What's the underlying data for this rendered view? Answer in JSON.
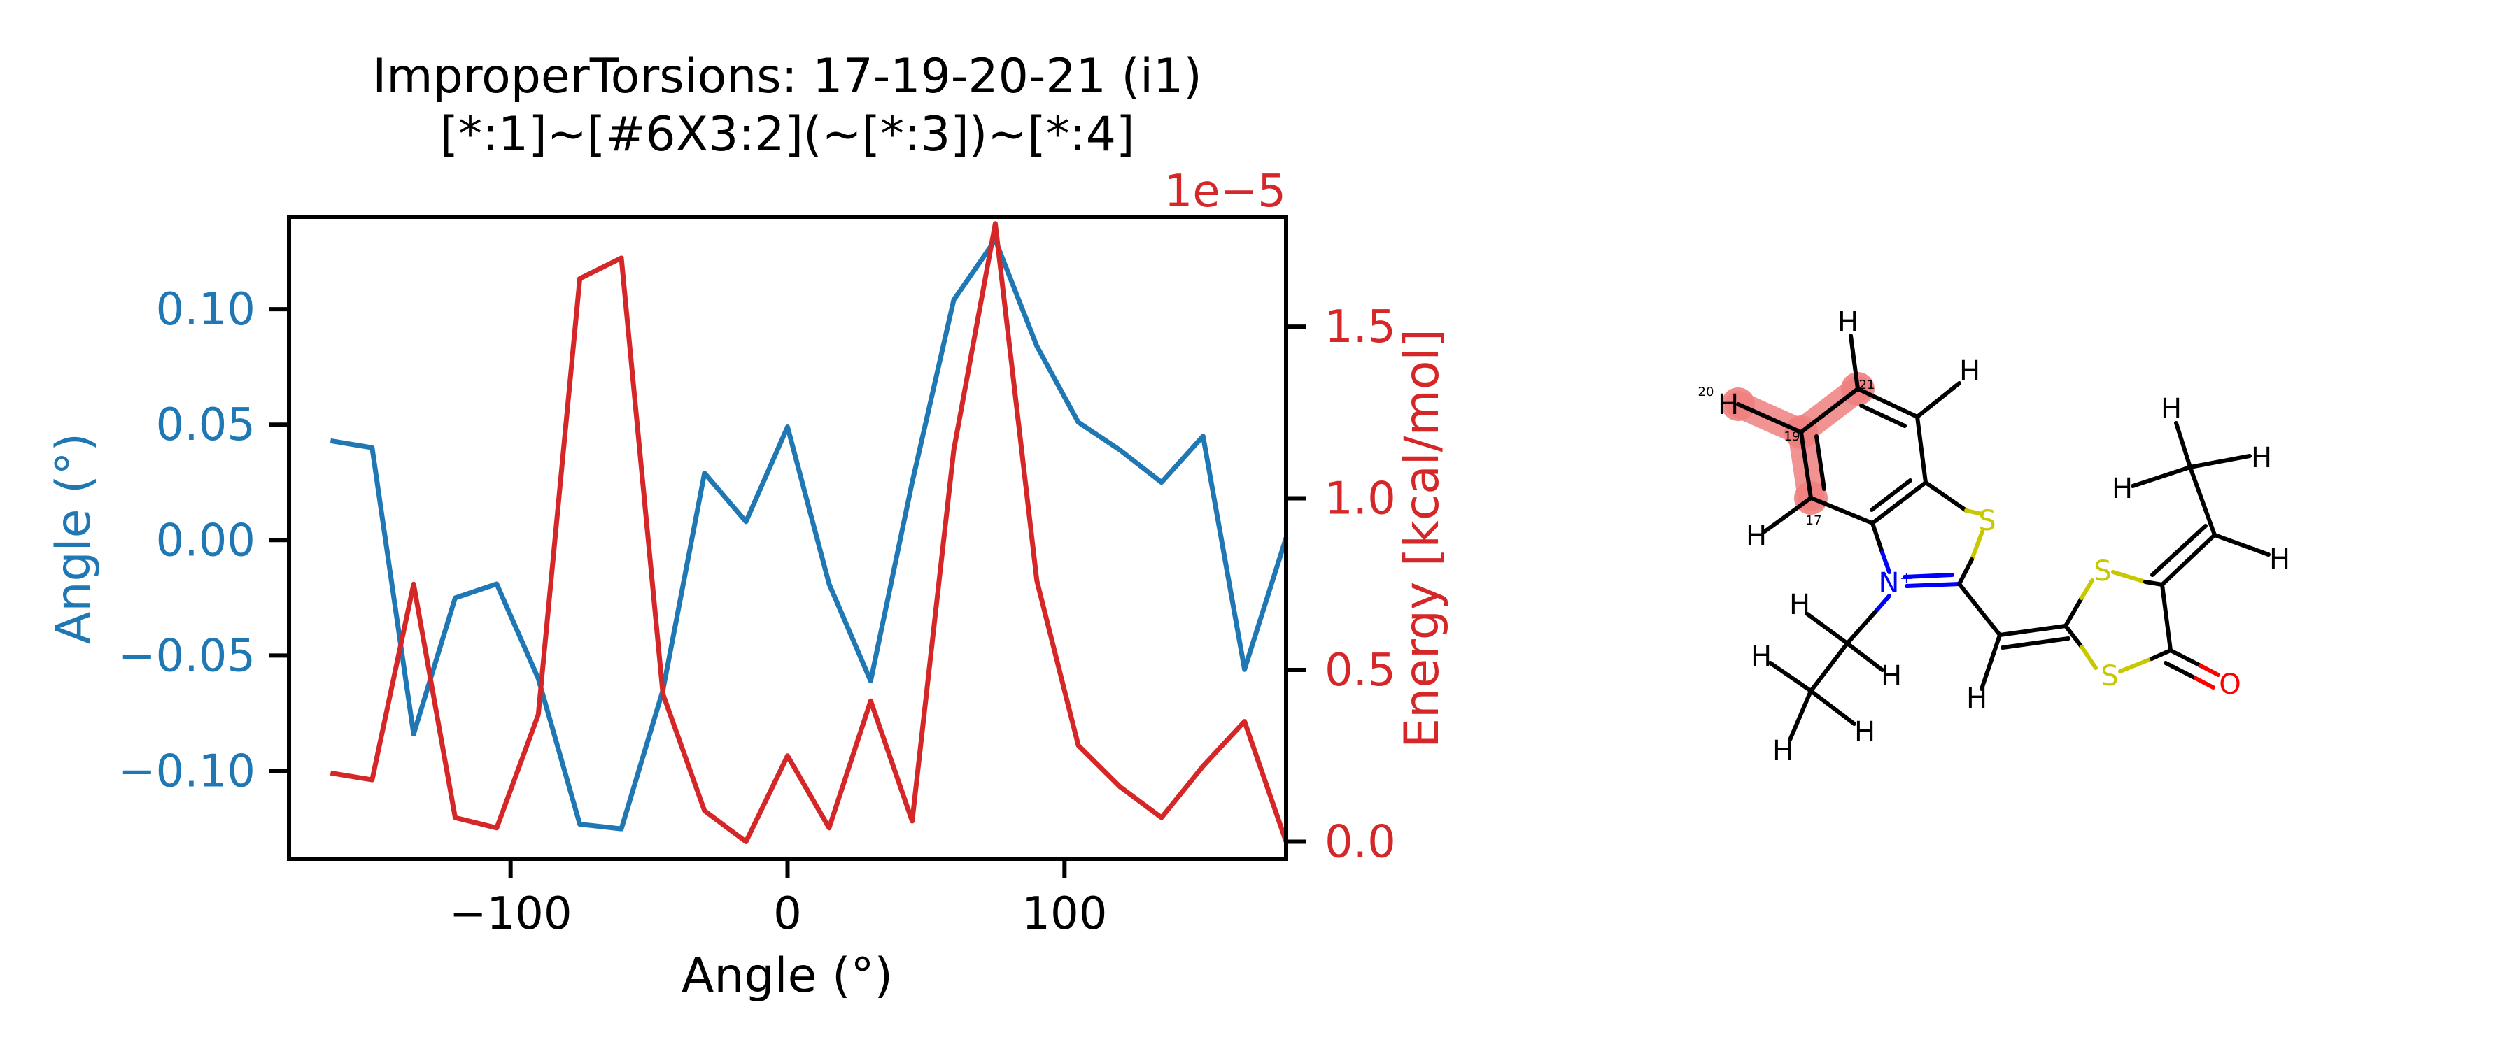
{
  "chart_data": {
    "type": "line",
    "title": "ImproperTorsions: 17-19-20-21 (i1)",
    "subtitle": "[*:1]~[#6X3:2](~[*:3])~[*:4]",
    "xlabel": "Angle (°)",
    "ylabel_left": "Angle (°)",
    "ylabel_right": "Energy [kcal/mol]",
    "right_offset_label": "1e−5",
    "xlim": [
      -180,
      180
    ],
    "ylim_left": [
      -0.138,
      0.14
    ],
    "ylim_right": [
      -0.05,
      1.82
    ],
    "x_ticks": [
      -100,
      0,
      100
    ],
    "x_tick_labels": [
      "−100",
      "0",
      "100"
    ],
    "y_left_ticks": [
      0.1,
      0.05,
      0.0,
      -0.05,
      -0.1
    ],
    "y_left_tick_labels": [
      "0.10",
      "0.05",
      "0.00",
      "−0.05",
      "−0.10"
    ],
    "y_right_ticks": [
      1.5,
      1.0,
      0.5,
      0.0
    ],
    "y_right_tick_labels": [
      "1.5",
      "1.0",
      "0.5",
      "0.0"
    ],
    "grid": false,
    "x": [
      -165,
      -150,
      -135,
      -120,
      -105,
      -90,
      -75,
      -60,
      -45,
      -30,
      -15,
      0,
      15,
      30,
      45,
      60,
      75,
      90,
      105,
      120,
      135,
      150,
      165,
      180
    ],
    "series": [
      {
        "axis": "left",
        "color": "#1f77b4",
        "values": [
          0.043,
          0.04,
          -0.084,
          -0.025,
          -0.019,
          -0.06,
          -0.123,
          -0.125,
          -0.065,
          0.029,
          0.008,
          0.049,
          -0.019,
          -0.061,
          0.025,
          0.104,
          0.13,
          0.084,
          0.051,
          0.039,
          0.025,
          0.045,
          -0.056,
          0.001
        ]
      },
      {
        "axis": "right",
        "color": "#d62728",
        "values": [
          0.2,
          0.18,
          0.75,
          0.07,
          0.04,
          0.37,
          1.64,
          1.7,
          0.43,
          0.09,
          0.0,
          0.25,
          0.04,
          0.41,
          0.06,
          1.14,
          1.8,
          0.76,
          0.28,
          0.16,
          0.07,
          0.22,
          0.35,
          0.0
        ]
      }
    ]
  },
  "molecule": {
    "atoms": [
      {
        "id": "H20",
        "label": "H",
        "num": "20",
        "color": "#000000"
      },
      {
        "id": "H21s",
        "label": "H",
        "num": "",
        "color": "#000000"
      },
      {
        "id": "H_top",
        "label": "H",
        "num": "",
        "color": "#000000"
      },
      {
        "id": "H_ring_r",
        "label": "H",
        "num": "",
        "color": "#000000"
      },
      {
        "id": "H17s",
        "label": "H",
        "num": "",
        "color": "#000000"
      },
      {
        "id": "S1",
        "label": "S",
        "num": "",
        "color": "#c8c800"
      },
      {
        "id": "N1",
        "label": "N⁺",
        "num": "",
        "color": "#0000ff"
      },
      {
        "id": "S2",
        "label": "S",
        "num": "",
        "color": "#c8c800"
      },
      {
        "id": "S3",
        "label": "S",
        "num": "",
        "color": "#c8c800"
      },
      {
        "id": "O1",
        "label": "O",
        "num": "",
        "color": "#ff0000"
      },
      {
        "id": "Hch",
        "label": "H",
        "num": "",
        "color": "#000000"
      },
      {
        "id": "He1",
        "label": "H",
        "num": "",
        "color": "#000000"
      },
      {
        "id": "He2",
        "label": "H",
        "num": "",
        "color": "#000000"
      },
      {
        "id": "He3",
        "label": "H",
        "num": "",
        "color": "#000000"
      },
      {
        "id": "He4",
        "label": "H",
        "num": "",
        "color": "#000000"
      },
      {
        "id": "He5",
        "label": "H",
        "num": "",
        "color": "#000000"
      },
      {
        "id": "Hv1",
        "label": "H",
        "num": "",
        "color": "#000000"
      },
      {
        "id": "Hv2",
        "label": "H",
        "num": "",
        "color": "#000000"
      },
      {
        "id": "Hv3",
        "label": "H",
        "num": "",
        "color": "#000000"
      },
      {
        "id": "Hv4",
        "label": "H",
        "num": "",
        "color": "#000000"
      }
    ],
    "carbon_labels": {
      "c19": "19",
      "c21": "21",
      "c17": "17"
    }
  }
}
